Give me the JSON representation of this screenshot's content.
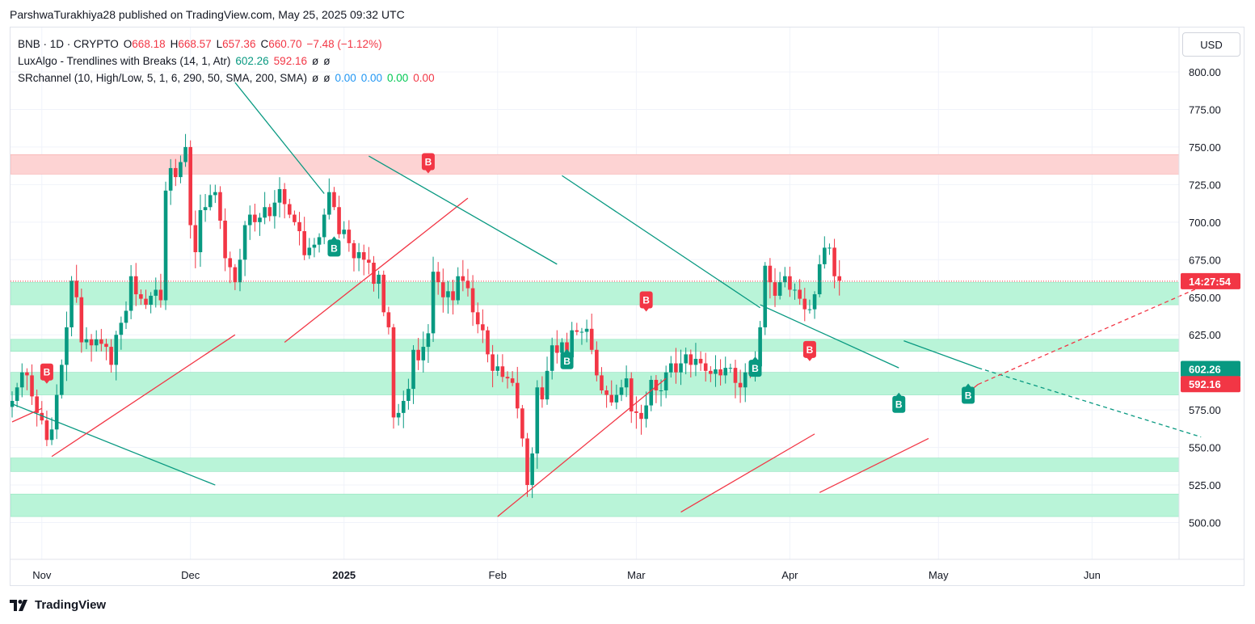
{
  "publisher": "ParshwaTurakhiya28 published on TradingView.com, May 25, 2025 09:32 UTC",
  "brand": "TradingView",
  "currency": "USD",
  "legend": {
    "symbol": "BNB · 1D · CRYPTO",
    "open_label": "O",
    "open": "668.18",
    "high_label": "H",
    "high": "668.57",
    "low_label": "L",
    "low": "657.36",
    "close_label": "C",
    "close": "660.70",
    "change": "−7.48 (−1.12%)",
    "ind1_name": "LuxAlgo - Trendlines with Breaks (14, 1, Atr)",
    "ind1_v1": "602.26",
    "ind1_v2": "592.16",
    "ind1_v3": "ø",
    "ind1_v4": "ø",
    "ind2_name": "SRchannel (10, High/Low, 5, 1, 6, 290, 50, SMA, 200, SMA)",
    "ind2_v1": "ø",
    "ind2_v2": "ø",
    "ind2_v3": "0.00",
    "ind2_v4": "0.00",
    "ind2_v5": "0.00",
    "ind2_v6": "0.00"
  },
  "colors": {
    "up": "#089981",
    "down": "#f23645",
    "support": "#b9f4d8",
    "resistance": "#fdd3d3",
    "grid": "#f0f3fa",
    "axis_text": "#131722"
  },
  "chart_data": {
    "type": "candlestick",
    "y_axis": {
      "ticks": [
        800,
        775,
        750,
        725,
        700,
        675,
        650,
        625,
        600,
        575,
        550,
        525,
        500
      ],
      "labels": [
        "800.00",
        "775.00",
        "750.00",
        "725.00",
        "700.00",
        "675.00",
        "650.00",
        "625.00",
        "600.00",
        "575.00",
        "550.00",
        "525.00",
        "500.00"
      ]
    },
    "x_axis": {
      "labels": [
        {
          "text": "Nov",
          "date": "2024-11-01"
        },
        {
          "text": "Dec",
          "date": "2024-12-01"
        },
        {
          "text": "2025",
          "date": "2025-01-01",
          "bold": true
        },
        {
          "text": "Feb",
          "date": "2025-02-01"
        },
        {
          "text": "Mar",
          "date": "2025-03-01"
        },
        {
          "text": "Apr",
          "date": "2025-04-01"
        },
        {
          "text": "May",
          "date": "2025-05-01"
        },
        {
          "text": "Jun",
          "date": "2025-06-01"
        }
      ]
    },
    "price_labels": [
      {
        "text": "14:27:54",
        "value": 660.7,
        "color": "#f23645"
      },
      {
        "text": "602.26",
        "value": 602.26,
        "color": "#089981"
      },
      {
        "text": "592.16",
        "value": 592.16,
        "color": "#f23645"
      }
    ],
    "current_price": 660.7,
    "zones": [
      {
        "kind": "resistance",
        "low": 732,
        "high": 745
      },
      {
        "kind": "support",
        "low": 645,
        "high": 660
      },
      {
        "kind": "support",
        "low": 614,
        "high": 622
      },
      {
        "kind": "support",
        "low": 585,
        "high": 600
      },
      {
        "kind": "support",
        "low": 534,
        "high": 543
      },
      {
        "kind": "support",
        "low": 504,
        "high": 519
      }
    ],
    "trendlines": [
      {
        "color": "#089981",
        "from": [
          "2024-10-26",
          579
        ],
        "to": [
          "2024-12-06",
          525
        ],
        "dashed": false
      },
      {
        "color": "#f23645",
        "from": [
          "2024-10-26",
          567
        ],
        "to": [
          "2024-11-01",
          576
        ],
        "dashed": false
      },
      {
        "color": "#f23645",
        "from": [
          "2024-11-03",
          544
        ],
        "to": [
          "2024-12-10",
          625
        ],
        "dashed": false
      },
      {
        "color": "#089981",
        "from": [
          "2024-12-10",
          793
        ],
        "to": [
          "2024-12-28",
          719
        ],
        "dashed": false
      },
      {
        "color": "#f23645",
        "from": [
          "2024-12-20",
          620
        ],
        "to": [
          "2025-01-26",
          716
        ],
        "dashed": false
      },
      {
        "color": "#089981",
        "from": [
          "2025-01-06",
          744
        ],
        "to": [
          "2025-02-13",
          672
        ],
        "dashed": false
      },
      {
        "color": "#f23645",
        "from": [
          "2025-02-01",
          504
        ],
        "to": [
          "2025-03-07",
          596
        ],
        "dashed": false
      },
      {
        "color": "#089981",
        "from": [
          "2025-02-14",
          731
        ],
        "to": [
          "2025-03-26",
          643
        ],
        "dashed": false
      },
      {
        "color": "#f23645",
        "from": [
          "2025-03-10",
          507
        ],
        "to": [
          "2025-04-06",
          559
        ],
        "dashed": false
      },
      {
        "color": "#089981",
        "from": [
          "2025-03-26",
          645
        ],
        "to": [
          "2025-04-23",
          603
        ],
        "dashed": false
      },
      {
        "color": "#f23645",
        "from": [
          "2025-04-07",
          520
        ],
        "to": [
          "2025-04-29",
          556
        ],
        "dashed": false
      },
      {
        "color": "#089981",
        "from": [
          "2025-04-24",
          621
        ],
        "to": [
          "2025-05-09",
          603
        ],
        "dashed": false
      },
      {
        "color": "#089981",
        "from": [
          "2025-05-09",
          603
        ],
        "to": [
          "2025-06-23",
          557
        ],
        "dashed": true
      },
      {
        "color": "#f23645",
        "from": [
          "2025-05-06",
          584
        ],
        "to": [
          "2025-05-09",
          592
        ],
        "dashed": false
      },
      {
        "color": "#f23645",
        "from": [
          "2025-05-09",
          592
        ],
        "to": [
          "2025-06-23",
          657
        ],
        "dashed": true
      }
    ],
    "markers": [
      {
        "date": "2024-11-02",
        "value": 593,
        "kind": "above",
        "label": "B"
      },
      {
        "date": "2024-12-30",
        "value": 690,
        "kind": "below",
        "label": "B"
      },
      {
        "date": "2025-01-18",
        "value": 733,
        "kind": "above",
        "label": "B"
      },
      {
        "date": "2025-02-15",
        "value": 615,
        "kind": "below",
        "label": "B"
      },
      {
        "date": "2025-03-03",
        "value": 641,
        "kind": "above",
        "label": "B"
      },
      {
        "date": "2025-03-25",
        "value": 610,
        "kind": "below",
        "label": "B"
      },
      {
        "date": "2025-04-05",
        "value": 608,
        "kind": "above",
        "label": "B"
      },
      {
        "date": "2025-04-23",
        "value": 586,
        "kind": "below",
        "label": "B"
      },
      {
        "date": "2025-05-07",
        "value": 592,
        "kind": "below",
        "label": "B"
      }
    ],
    "start_date": "2024-10-26",
    "closes": [
      581,
      590,
      600,
      598,
      584,
      573,
      568,
      555,
      562,
      585,
      605,
      630,
      661,
      650,
      620,
      622,
      618,
      622,
      619,
      617,
      605,
      625,
      633,
      641,
      664,
      652,
      649,
      645,
      651,
      655,
      648,
      721,
      736,
      730,
      740,
      750,
      698,
      680,
      708,
      710,
      718,
      720,
      701,
      676,
      670,
      660,
      675,
      698,
      705,
      700,
      703,
      710,
      704,
      713,
      722,
      712,
      705,
      700,
      694,
      678,
      683,
      685,
      690,
      705,
      720,
      710,
      692,
      695,
      686,
      676,
      680,
      675,
      673,
      659,
      665,
      640,
      630,
      570,
      573,
      581,
      589,
      615,
      608,
      617,
      626,
      667,
      660,
      650,
      654,
      648,
      664,
      661,
      656,
      640,
      632,
      628,
      612,
      601,
      604,
      597,
      596,
      593,
      576,
      556,
      525,
      546,
      590,
      582,
      601,
      618,
      613,
      620,
      610,
      628,
      627,
      627,
      629,
      615,
      598,
      588,
      585,
      580,
      585,
      590,
      596,
      574,
      573,
      569,
      578,
      595,
      588,
      588,
      600,
      606,
      600,
      606,
      612,
      605,
      609,
      606,
      601,
      599,
      602,
      598,
      603,
      603,
      593,
      590,
      600,
      599,
      604,
      630,
      671,
      660,
      651,
      660,
      664,
      655,
      655,
      649,
      642,
      642,
      652,
      672,
      683,
      683,
      664,
      661
    ]
  }
}
